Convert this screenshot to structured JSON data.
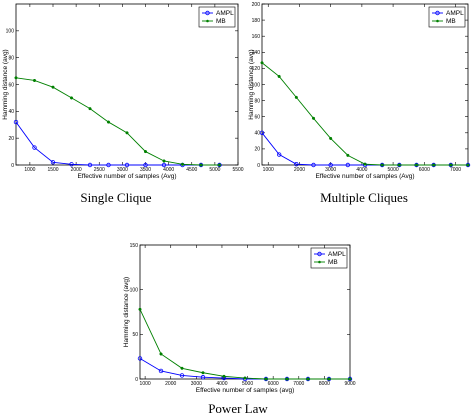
{
  "chart_data": [
    {
      "type": "line",
      "caption": "Single Clique",
      "xlabel": "Effective number of samples (Avg)",
      "ylabel": "Hamming distance (avg)",
      "xlim": [
        700,
        5500
      ],
      "ylim": [
        0,
        120
      ],
      "xticks": [
        1000,
        1500,
        2000,
        2500,
        3000,
        3500,
        4000,
        4500,
        5000,
        5500
      ],
      "yticks": [
        0,
        20,
        40,
        60,
        80,
        100
      ],
      "legend_position": "top-right",
      "series": [
        {
          "name": "AMPL",
          "color": "#0000ff",
          "marker": "circle",
          "x": [
            700,
            1100,
            1500,
            1900,
            2300,
            2700,
            3100,
            3500,
            3900,
            4300,
            4700,
            5100
          ],
          "y": [
            32,
            13,
            2,
            0.5,
            0,
            0,
            0,
            0,
            0,
            0,
            0,
            0
          ]
        },
        {
          "name": "MB",
          "color": "#008000",
          "marker": "dot",
          "x": [
            700,
            1100,
            1500,
            1900,
            2300,
            2700,
            3100,
            3500,
            3900,
            4300,
            4700,
            5100
          ],
          "y": [
            65,
            63,
            58,
            50,
            42,
            32,
            24,
            10,
            3,
            0.5,
            0,
            0
          ]
        }
      ]
    },
    {
      "type": "line",
      "caption": "Multiple Cliques",
      "xlabel": "Effective number of samples (Avg)",
      "ylabel": "Hamming distance (avg)",
      "xlim": [
        800,
        7400
      ],
      "ylim": [
        0,
        200
      ],
      "xticks": [
        1000,
        2000,
        3000,
        4000,
        5000,
        6000,
        7000
      ],
      "yticks": [
        0,
        20,
        40,
        60,
        80,
        100,
        120,
        140,
        160,
        180,
        200
      ],
      "legend_position": "top-right",
      "series": [
        {
          "name": "AMPL",
          "color": "#0000ff",
          "marker": "circle",
          "x": [
            800,
            1350,
            1900,
            2450,
            3000,
            3550,
            4100,
            4650,
            5200,
            5750,
            6300,
            6850,
            7400
          ],
          "y": [
            40,
            13,
            1,
            0,
            0,
            0,
            0,
            0,
            0,
            0,
            0,
            0,
            0
          ]
        },
        {
          "name": "MB",
          "color": "#008000",
          "marker": "dot",
          "x": [
            800,
            1350,
            1900,
            2450,
            3000,
            3550,
            4100,
            4650,
            5200,
            5750,
            6300,
            6850,
            7400
          ],
          "y": [
            127,
            110,
            84,
            58,
            33,
            12,
            1,
            0,
            0,
            0,
            0,
            0,
            0
          ]
        }
      ]
    },
    {
      "type": "line",
      "caption": "Power Law",
      "xlabel": "Effective number of samples (avg)",
      "ylabel": "Hamming distance (avg)",
      "xlim": [
        800,
        9000
      ],
      "ylim": [
        0,
        150
      ],
      "xticks": [
        1000,
        2000,
        3000,
        4000,
        5000,
        6000,
        7000,
        8000,
        9000
      ],
      "yticks": [
        0,
        50,
        100,
        150
      ],
      "legend_position": "top-right",
      "series": [
        {
          "name": "AMPL",
          "color": "#0000ff",
          "marker": "circle",
          "x": [
            800,
            1620,
            2440,
            3260,
            4080,
            4900,
            5720,
            6540,
            7360,
            8180,
            9000
          ],
          "y": [
            23,
            9,
            4,
            2,
            1,
            0,
            0,
            0,
            0,
            0,
            0
          ]
        },
        {
          "name": "MB",
          "color": "#008000",
          "marker": "dot",
          "x": [
            800,
            1620,
            2440,
            3260,
            4080,
            4900,
            5720,
            6540,
            7360,
            8180,
            9000
          ],
          "y": [
            78,
            28,
            12,
            7,
            3,
            1,
            0,
            0,
            0,
            0,
            0
          ]
        }
      ]
    }
  ]
}
